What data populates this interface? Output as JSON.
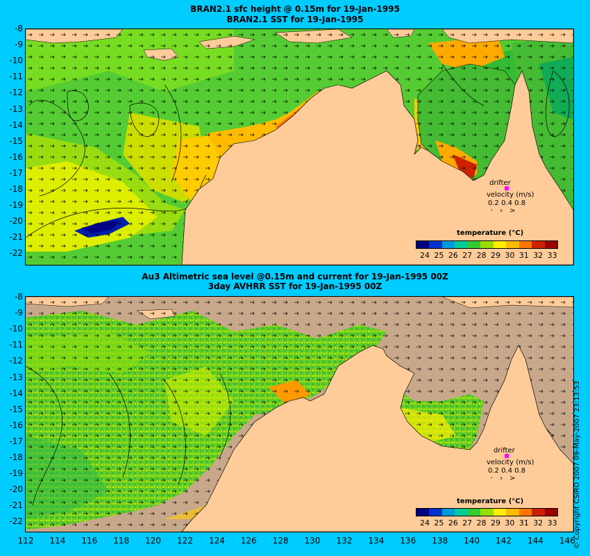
{
  "top": {
    "title_line1": "BRAN2.1 sfc height @ 0.15m for 19-Jan-1995",
    "title_line2": "BRAN2.1 SST for 19-Jan-1995"
  },
  "bottom": {
    "title_line1": "Au3 Altimetric sea level  @0.15m and current for 19-Jan-1995 00Z",
    "title_line2": "3day AVHRR SST for 19-Jan-1995 00Z"
  },
  "y_ticks": [
    "-8",
    "-9",
    "-10",
    "-11",
    "-12",
    "-13",
    "-14",
    "-15",
    "-16",
    "-17",
    "-18",
    "-19",
    "-20",
    "-21",
    "-22"
  ],
  "x_ticks": [
    "112",
    "114",
    "116",
    "118",
    "120",
    "122",
    "124",
    "126",
    "128",
    "130",
    "132",
    "134",
    "136",
    "138",
    "140",
    "142",
    "144",
    "146"
  ],
  "legend": {
    "title": "temperature (°C)",
    "labels": [
      "24",
      "25",
      "26",
      "27",
      "28",
      "29",
      "30",
      "31",
      "32",
      "33"
    ],
    "colors": [
      "#000080",
      "#0033cc",
      "#0099dd",
      "#00cc99",
      "#33cc33",
      "#99dd00",
      "#ffee00",
      "#ffbb00",
      "#ff7700",
      "#cc2200",
      "#990000"
    ]
  },
  "drifter": {
    "label": "drifter",
    "velocity_label": "velocity (m/s)",
    "scale_values": "0.2 0.4 0.8",
    "marker_color": "#ff00ff"
  },
  "copyright": "© Copyright CSIRO 2007   09-May-2007 23:13:53",
  "colors": {
    "background": "#00ccff",
    "land": "#ffcc99",
    "no_data": "#c8a88a"
  }
}
